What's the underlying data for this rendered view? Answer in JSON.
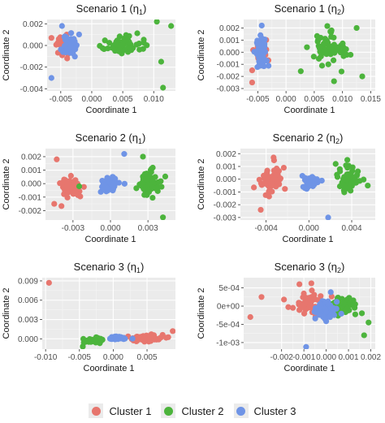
{
  "legend": {
    "items": [
      {
        "label": "Cluster 1",
        "color": "#E7766E"
      },
      {
        "label": "Cluster 2",
        "color": "#4CB43C"
      },
      {
        "label": "Cluster 3",
        "color": "#6F94E6"
      }
    ]
  },
  "chart_data": [
    {
      "type": "scatter",
      "title_main": "Scenario 1 (η",
      "title_sub": "1",
      "title_end": ")",
      "xlabel": "Coordinate 1",
      "ylabel": "Coordinate 2",
      "xlim": [
        -0.0072,
        0.0135
      ],
      "ylim": [
        -0.0042,
        0.0024
      ],
      "xticks": [
        -0.005,
        0.0,
        0.005,
        0.01
      ],
      "xticklabels": [
        "-0.005",
        "0.000",
        "0.005",
        "0.010"
      ],
      "yticks": [
        -0.004,
        -0.002,
        0.0,
        0.002
      ],
      "yticklabels": [
        "-0.004",
        "-0.002",
        "0.000",
        "0.002"
      ],
      "series": [
        {
          "color": "#E7766E",
          "cx": -0.0045,
          "cy": 0.0,
          "sx": 0.0009,
          "sy": 0.0008,
          "n": 45,
          "extra": [
            [
              -0.0065,
              0.0007
            ]
          ]
        },
        {
          "color": "#4CB43C",
          "cx": 0.0045,
          "cy": 0.0,
          "sx": 0.0028,
          "sy": 0.0007,
          "n": 60,
          "extra": [
            [
              0.0115,
              -0.0039
            ],
            [
              0.0128,
              0.0018
            ],
            [
              0.0105,
              0.0022
            ],
            [
              0.0112,
              -0.0015
            ]
          ]
        },
        {
          "color": "#6F94E6",
          "cx": -0.0035,
          "cy": 0.0,
          "sx": 0.0009,
          "sy": 0.0007,
          "n": 70,
          "extra": [
            [
              -0.0065,
              -0.003
            ],
            [
              -0.0048,
              0.0018
            ]
          ]
        }
      ]
    },
    {
      "type": "scatter",
      "title_main": "Scenario 1 (η",
      "title_sub": "2",
      "title_end": ")",
      "xlabel": "Coordinate 1",
      "ylabel": "Coordinate 2",
      "xlim": [
        -0.0075,
        0.0158
      ],
      "ylim": [
        -0.0032,
        0.0027
      ],
      "xticks": [
        -0.005,
        0.0,
        0.005,
        0.01,
        0.015
      ],
      "xticklabels": [
        "-0.005",
        "0.000",
        "0.005",
        "0.010",
        "0.015"
      ],
      "yticks": [
        -0.003,
        -0.002,
        -0.001,
        0.0,
        0.001,
        0.002
      ],
      "yticklabels": [
        "-0.003",
        "-0.002",
        "-0.001",
        "0.000",
        "0.001",
        "0.002"
      ],
      "series": [
        {
          "color": "#E7766E",
          "cx": -0.0045,
          "cy": 0.0,
          "sx": 0.001,
          "sy": 0.0007,
          "n": 35,
          "extra": [
            [
              -0.006,
              -0.0025
            ],
            [
              -0.006,
              -0.0015
            ]
          ]
        },
        {
          "color": "#4CB43C",
          "cx": 0.0075,
          "cy": 0.0002,
          "sx": 0.0025,
          "sy": 0.0011,
          "n": 65,
          "extra": [
            [
              0.0135,
              -0.002
            ],
            [
              0.0085,
              -0.0024
            ],
            [
              0.0125,
              0.002
            ]
          ]
        },
        {
          "color": "#6F94E6",
          "cx": -0.0045,
          "cy": 0.0,
          "sx": 0.0008,
          "sy": 0.0009,
          "n": 70,
          "extra": [
            [
              -0.0043,
              0.0022
            ]
          ]
        }
      ]
    },
    {
      "type": "scatter",
      "title_main": "Scenario 2 (η",
      "title_sub": "1",
      "title_end": ")",
      "xlabel": "Coordinate 1",
      "ylabel": "Coordinate 2",
      "xlim": [
        -0.0052,
        0.0052
      ],
      "ylim": [
        -0.0027,
        0.0026
      ],
      "xticks": [
        -0.003,
        0.0,
        0.003
      ],
      "xticklabels": [
        "-0.003",
        "0.000",
        "0.003"
      ],
      "yticks": [
        -0.002,
        -0.001,
        0.0,
        0.001,
        0.002
      ],
      "yticklabels": [
        "-0.002",
        "-0.001",
        "0.000",
        "0.001",
        "0.002"
      ],
      "series": [
        {
          "color": "#E7766E",
          "cx": -0.0032,
          "cy": -0.0002,
          "sx": 0.0008,
          "sy": 0.0007,
          "n": 55,
          "extra": [
            [
              -0.0045,
              -0.0015
            ],
            [
              -0.0043,
              0.0018
            ]
          ]
        },
        {
          "color": "#4CB43C",
          "cx": 0.0031,
          "cy": 0.0,
          "sx": 0.0007,
          "sy": 0.0008,
          "n": 60,
          "extra": [
            [
              -0.0025,
              -0.0002
            ],
            [
              0.0042,
              -0.0025
            ],
            [
              0.0026,
              0.002
            ]
          ]
        },
        {
          "color": "#6F94E6",
          "cx": 0.0,
          "cy": 0.0,
          "sx": 0.0006,
          "sy": 0.0004,
          "n": 50,
          "extra": [
            [
              0.0011,
              0.0022
            ]
          ]
        }
      ]
    },
    {
      "type": "scatter",
      "title_main": "Scenario 2 (η",
      "title_sub": "2",
      "title_end": ")",
      "xlabel": "Coordinate 1",
      "ylabel": "Coordinate 2",
      "xlim": [
        -0.0064,
        0.0062
      ],
      "ylim": [
        -0.0032,
        0.0024
      ],
      "xticks": [
        -0.004,
        0.0,
        0.004
      ],
      "xticklabels": [
        "-0.004",
        "0.000",
        "0.004"
      ],
      "yticks": [
        -0.003,
        -0.002,
        -0.001,
        0.0,
        0.001,
        0.002
      ],
      "yticklabels": [
        "-0.003",
        "-0.002",
        "-0.001",
        "0.000",
        "0.001",
        "0.002"
      ],
      "series": [
        {
          "color": "#E7766E",
          "cx": -0.0035,
          "cy": -0.0001,
          "sx": 0.001,
          "sy": 0.0009,
          "n": 60,
          "extra": [
            [
              -0.0045,
              -0.0024
            ],
            [
              -0.0033,
              0.0017
            ]
          ]
        },
        {
          "color": "#4CB43C",
          "cx": 0.0038,
          "cy": 0.0001,
          "sx": 0.0009,
          "sy": 0.0008,
          "n": 55,
          "extra": [
            [
              0.0055,
              -0.0005
            ],
            [
              0.0025,
              0.0012
            ]
          ]
        },
        {
          "color": "#6F94E6",
          "cx": 0.0,
          "cy": -0.0002,
          "sx": 0.0006,
          "sy": 0.0004,
          "n": 50,
          "extra": [
            [
              0.0018,
              -0.003
            ]
          ]
        }
      ]
    },
    {
      "type": "scatter",
      "title_main": "Scenario 3 (η",
      "title_sub": "1",
      "title_end": ")",
      "xlabel": "Coordinate 1",
      "ylabel": "Coordinate 2",
      "xlim": [
        -0.0105,
        0.0092
      ],
      "ylim": [
        -0.0016,
        0.0095
      ],
      "xticks": [
        -0.01,
        -0.005,
        0.0,
        0.005
      ],
      "xticklabels": [
        "-0.010",
        "-0.005",
        "0.000",
        "0.005"
      ],
      "yticks": [
        0.0,
        0.003,
        0.006,
        0.009
      ],
      "yticklabels": [
        "0.000",
        "0.003",
        "0.006",
        "0.009"
      ],
      "series": [
        {
          "color": "#E7766E",
          "cx": 0.0045,
          "cy": 0.0001,
          "sx": 0.0022,
          "sy": 0.0004,
          "n": 80,
          "extra": [
            [
              -0.0095,
              0.0087
            ],
            [
              0.0088,
              0.0012
            ]
          ]
        },
        {
          "color": "#4CB43C",
          "cx": -0.003,
          "cy": -0.0003,
          "sx": 0.001,
          "sy": 0.0004,
          "n": 45,
          "extra": [
            [
              -0.0045,
              -0.0012
            ]
          ]
        },
        {
          "color": "#6F94E6",
          "cx": 0.0005,
          "cy": 0.0001,
          "sx": 0.001,
          "sy": 0.0002,
          "n": 45,
          "extra": []
        }
      ]
    },
    {
      "type": "scatter",
      "title_main": "Scenario 3 (η",
      "title_sub": "2",
      "title_end": ")",
      "xlabel": "Coordinate 1",
      "ylabel": "Coordinate 2",
      "xlim": [
        -0.0037,
        0.0022
      ],
      "ylim": [
        -0.00118,
        0.00078
      ],
      "xticks": [
        -0.002,
        -0.001,
        0.0,
        0.001,
        0.002
      ],
      "xticklabels": [
        "-0.002",
        "-0.001",
        "0.000",
        "0.001",
        "0.002"
      ],
      "yticks": [
        -0.001,
        -0.0005,
        0.0,
        0.0005
      ],
      "yticklabels": [
        "-1e-03",
        "-5e-04",
        "0e+00",
        "5e-04"
      ],
      "series": [
        {
          "color": "#E7766E",
          "cx": -0.0008,
          "cy": 0.0001,
          "sx": 0.0008,
          "sy": 0.0003,
          "n": 50,
          "extra": [
            [
              -0.0034,
              -0.0003
            ],
            [
              -0.0029,
              0.00025
            ],
            [
              -0.0012,
              0.0006
            ]
          ]
        },
        {
          "color": "#4CB43C",
          "cx": 0.0008,
          "cy": 0.0,
          "sx": 0.0006,
          "sy": 0.0002,
          "n": 55,
          "extra": [
            [
              0.0019,
              -0.00045
            ],
            [
              0.0017,
              -0.0008
            ]
          ]
        },
        {
          "color": "#6F94E6",
          "cx": -0.0001,
          "cy": -0.0001,
          "sx": 0.0004,
          "sy": 0.0002,
          "n": 70,
          "extra": [
            [
              -0.0009,
              -0.00112
            ]
          ]
        }
      ]
    }
  ]
}
